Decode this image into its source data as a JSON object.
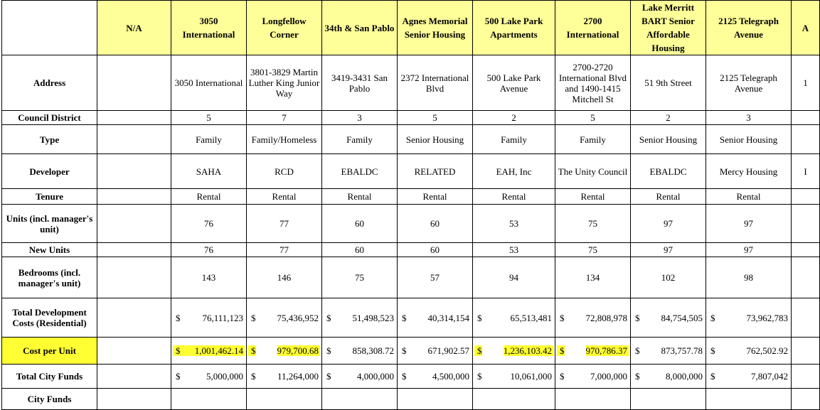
{
  "header": {
    "na": "N/A",
    "projects": [
      "3050 International",
      "Longfellow Corner",
      "34th & San Pablo",
      "Agnes Memorial Senior Housing",
      "500 Lake Park Apartments",
      "2700 International",
      "Lake Merritt BART Senior Affordable Housing",
      "2125 Telegraph Avenue",
      "A"
    ]
  },
  "labels": {
    "address": "Address",
    "council_district": "Council District",
    "type": "Type",
    "developer": "Developer",
    "tenure": "Tenure",
    "units": "Units (incl. manager's unit)",
    "new_units": "New Units",
    "bedrooms": "Bedrooms (incl. manager's unit)",
    "tdc": "Total Development Costs (Residential)",
    "cost_per_unit": "Cost per Unit",
    "total_city_funds": "Total City Funds",
    "city_funds": "City Funds"
  },
  "na_column": {
    "address": "",
    "council_district": "",
    "type": "",
    "developer": "",
    "tenure": "",
    "units": "",
    "new_units": "",
    "bedrooms": "",
    "tdc": "",
    "cost_per_unit": "",
    "total_city_funds": ""
  },
  "address": [
    "3050 International",
    "3801-3829 Martin Luther King Junior Way",
    "3419-3431 San Pablo",
    "2372 International Blvd",
    "500 Lake Park Avenue",
    "2700-2720 International Blvd and 1490-1415 Mitchell St",
    "51 9th Street",
    "2125 Telegraph Avenue",
    "1"
  ],
  "council_district": [
    "5",
    "7",
    "3",
    "5",
    "2",
    "5",
    "2",
    "3",
    ""
  ],
  "type": [
    "Family",
    "Family/Homeless",
    "Family",
    "Senior Housing",
    "Family",
    "Family",
    "Senior Housing",
    "Senior Housing",
    ""
  ],
  "developer": [
    "SAHA",
    "RCD",
    "EBALDC",
    "RELATED",
    "EAH, Inc",
    "The Unity Council",
    "EBALDC",
    "Mercy Housing",
    "I"
  ],
  "tenure": [
    "Rental",
    "Rental",
    "Rental",
    "Rental",
    "Rental",
    "Rental",
    "Rental",
    "Rental",
    ""
  ],
  "units": [
    "76",
    "77",
    "60",
    "60",
    "53",
    "75",
    "97",
    "97",
    ""
  ],
  "new_units": [
    "76",
    "77",
    "60",
    "60",
    "53",
    "75",
    "97",
    "97",
    ""
  ],
  "bedrooms": [
    "143",
    "146",
    "75",
    "57",
    "94",
    "134",
    "102",
    "98",
    ""
  ],
  "currency": "$",
  "tdc": [
    "76,111,123",
    "75,436,952",
    "51,498,523",
    "40,314,154",
    "65,513,481",
    "72,808,978",
    "84,754,505",
    "73,962,783",
    ""
  ],
  "cost_per_unit": [
    "1,001,462.14",
    "979,700.68",
    "858,308.72",
    "671,902.57",
    "1,236,103.42",
    "970,786.37",
    "873,757.78",
    "762,502.92",
    ""
  ],
  "total_city_funds": [
    "5,000,000",
    "11,264,000",
    "4,000,000",
    "4,500,000",
    "10,061,000",
    "7,000,000",
    "8,000,000",
    "7,807,042",
    ""
  ],
  "highlight_color": "#ffff33",
  "header_color": "#ffff99"
}
